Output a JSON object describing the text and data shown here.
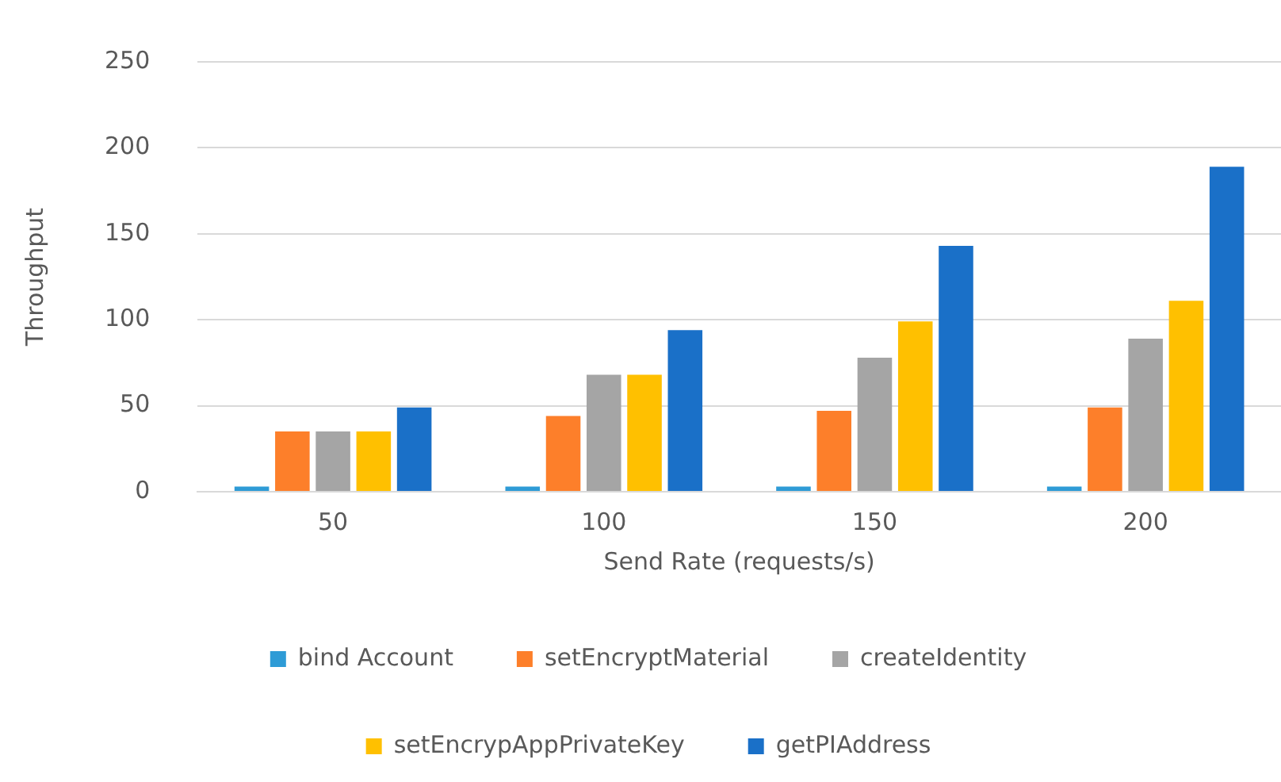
{
  "chart_data": {
    "type": "bar",
    "xlabel": "Send Rate (requests/s)",
    "ylabel": "Throughput",
    "categories": [
      "50",
      "100",
      "150",
      "200"
    ],
    "series": [
      {
        "name": "bind Account",
        "color": "#2e9bd6",
        "values": [
          3,
          3,
          3,
          3
        ]
      },
      {
        "name": "setEncryptMaterial",
        "color": "#fd7f2a",
        "values": [
          35,
          44,
          47,
          49
        ]
      },
      {
        "name": "createIdentity",
        "color": "#a5a5a5",
        "values": [
          35,
          68,
          78,
          89
        ]
      },
      {
        "name": "setEncrypAppPrivateKey",
        "color": "#ffc000",
        "values": [
          35,
          68,
          99,
          111
        ]
      },
      {
        "name": "getPIAddress",
        "color": "#1a70c8",
        "values": [
          49,
          94,
          143,
          189
        ]
      }
    ],
    "ylim": [
      0,
      250
    ],
    "yticks": [
      0,
      50,
      100,
      150,
      200,
      250
    ],
    "grid": "y",
    "legend": "bottom"
  }
}
